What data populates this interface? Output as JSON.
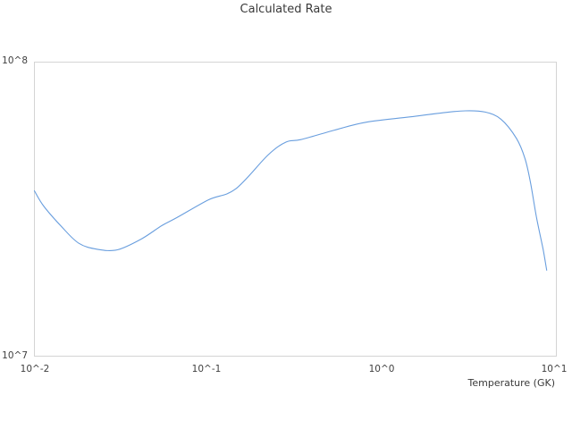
{
  "title": "Calculated Rate",
  "chart_data": {
    "type": "line",
    "title": "Calculated Rate",
    "xlabel": "Temperature (GK)",
    "ylabel": "",
    "x_scale": "log",
    "y_scale": "log",
    "xlim": [
      0.01,
      10
    ],
    "ylim": [
      10000000,
      100000000
    ],
    "x_tick_labels": [
      "10^-2",
      "10^-1",
      "10^0",
      "10^1"
    ],
    "y_tick_labels": [
      "10^7",
      "10^8"
    ],
    "grid": false,
    "legend_position": "none",
    "line_color": "#699ede",
    "border_color": "#d4d4d4",
    "series": [
      {
        "name": "Calculated Rate",
        "x": [
          0.01,
          0.0113,
          0.0143,
          0.018,
          0.023,
          0.03,
          0.041,
          0.054,
          0.066,
          0.1,
          0.143,
          0.22,
          0.28,
          0.34,
          0.53,
          0.81,
          1.5,
          2.2,
          3.0,
          3.9,
          4.8,
          5.9,
          6.6,
          7.1,
          7.7,
          8.4,
          8.8
        ],
        "y": [
          36500000,
          32400000,
          27600000,
          24200000,
          23100000,
          23000000,
          25000000,
          27800000,
          29600000,
          34000000,
          37000000,
          48300000,
          53500000,
          54500000,
          58700000,
          62500000,
          65300000,
          67200000,
          68300000,
          67600000,
          64000000,
          55000000,
          47000000,
          39000000,
          29500000,
          23000000,
          19600000
        ]
      }
    ]
  }
}
